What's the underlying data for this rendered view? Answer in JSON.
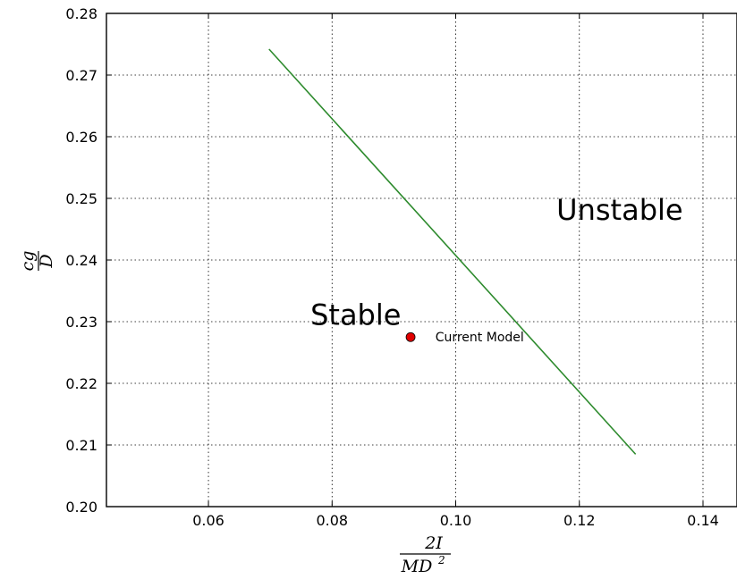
{
  "chart_data": {
    "type": "scatter",
    "title": "",
    "xlabel": {
      "numerator": "2I",
      "denominator_base": "MD",
      "denominator_exp": "2"
    },
    "ylabel": {
      "numerator": "cg",
      "denominator": "D"
    },
    "xlim": [
      0.0435,
      0.1455
    ],
    "ylim": [
      0.2,
      0.28
    ],
    "x_ticks": [
      0.06,
      0.08,
      0.1,
      0.12,
      0.14
    ],
    "x_tick_labels": [
      "0.06",
      "0.08",
      "0.10",
      "0.12",
      "0.14"
    ],
    "y_ticks": [
      0.2,
      0.21,
      0.22,
      0.23,
      0.24,
      0.25,
      0.26,
      0.27,
      0.28
    ],
    "y_tick_labels": [
      "0.20",
      "0.21",
      "0.22",
      "0.23",
      "0.24",
      "0.25",
      "0.26",
      "0.27",
      "0.28"
    ],
    "grid": true,
    "series": [
      {
        "type": "line",
        "color": "#2e8b2e",
        "x": [
          0.0698,
          0.1291
        ],
        "y": [
          0.2742,
          0.2085
        ]
      },
      {
        "type": "scatter",
        "color": "#e00000",
        "x": [
          0.0927
        ],
        "y": [
          0.2275
        ]
      }
    ],
    "annotations": [
      {
        "text": "Unstable",
        "x": 0.1163,
        "y": 0.2465,
        "size": "large"
      },
      {
        "text": "Stable",
        "x": 0.0765,
        "y": 0.2295,
        "size": "large"
      },
      {
        "text": "Current Model",
        "x": 0.0967,
        "y": 0.2268,
        "size": "small"
      }
    ]
  }
}
